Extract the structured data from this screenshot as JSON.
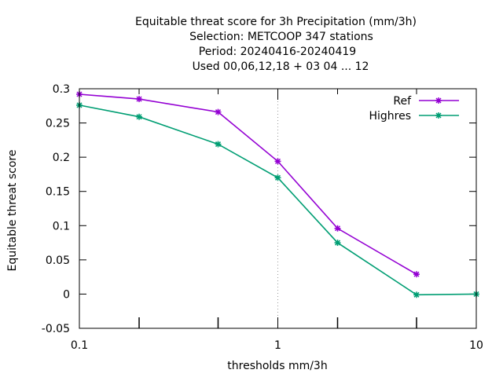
{
  "chart_data": {
    "type": "line",
    "title": [
      "Equitable threat score  for 3h Precipitation (mm/3h)",
      "Selection: METCOOP    347 stations",
      "Period: 20240416-20240419",
      "Used  00,06,12,18 + 03 04 ... 12"
    ],
    "xlabel": "thresholds mm/3h",
    "ylabel": "Equitable threat score",
    "x_scale": "log",
    "xlim": [
      0.1,
      10
    ],
    "ylim": [
      -0.05,
      0.3
    ],
    "x_ticks": [
      0.1,
      1,
      10
    ],
    "x_tick_labels": [
      "0.1",
      "1",
      "10"
    ],
    "x_minor_ticks": [
      0.2,
      0.5,
      2,
      5
    ],
    "y_ticks": [
      -0.05,
      0,
      0.05,
      0.1,
      0.15,
      0.2,
      0.25,
      0.3
    ],
    "y_tick_labels": [
      "-0.05",
      "0",
      "0.05",
      "0.1",
      "0.15",
      "0.2",
      "0.25",
      "0.3"
    ],
    "grid": "vertical dotted at 1",
    "legend_position": "top-right",
    "series": [
      {
        "name": "Ref",
        "color": "#9400d3",
        "x": [
          0.1,
          0.2,
          0.5,
          1,
          2,
          5
        ],
        "y": [
          0.292,
          0.285,
          0.266,
          0.194,
          0.096,
          0.029
        ]
      },
      {
        "name": "Highres",
        "color": "#009e73",
        "x": [
          0.1,
          0.2,
          0.5,
          1,
          2,
          5,
          10
        ],
        "y": [
          0.276,
          0.259,
          0.219,
          0.17,
          0.075,
          -0.001,
          0.0
        ]
      }
    ]
  }
}
